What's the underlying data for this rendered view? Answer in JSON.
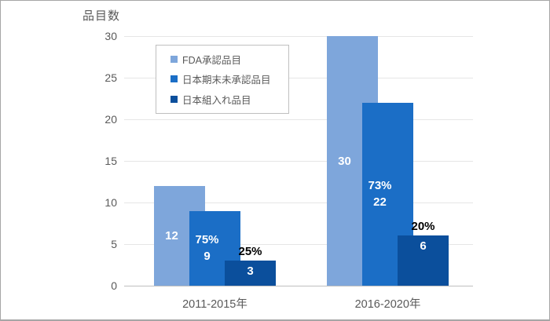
{
  "chart_data": {
    "type": "bar",
    "title": "品目数",
    "categories": [
      "2011-2015年",
      "2016-2020年"
    ],
    "series": [
      {
        "name": "FDA承認品目",
        "color": "#7EA6DB",
        "values": [
          12,
          30
        ],
        "value_labels": [
          "12",
          "30"
        ]
      },
      {
        "name": "日本期末未承認品目",
        "color": "#1B6EC6",
        "values": [
          9,
          22
        ],
        "value_labels": [
          "9",
          "22"
        ],
        "pct_labels": [
          "75%",
          "73%"
        ]
      },
      {
        "name": "日本組入れ品目",
        "color": "#0B4F9C",
        "values": [
          3,
          6
        ],
        "value_labels": [
          "3",
          "6"
        ],
        "pct_labels": [
          "25%",
          "20%"
        ]
      }
    ],
    "ylim": [
      0,
      30
    ],
    "yticks": [
      0,
      5,
      10,
      15,
      20,
      25,
      30
    ],
    "grid": true,
    "legend_position": "upper-left-inside",
    "colors": {
      "bg": "#ffffff",
      "frame_border": "#a6a6a6",
      "grid": "#e6e6e6",
      "baseline": "#bfbfbf",
      "axis_text": "#595959",
      "label_inside": "#ffffff",
      "label_outside": "#000000",
      "legend_border": "#bfbfbf"
    }
  }
}
